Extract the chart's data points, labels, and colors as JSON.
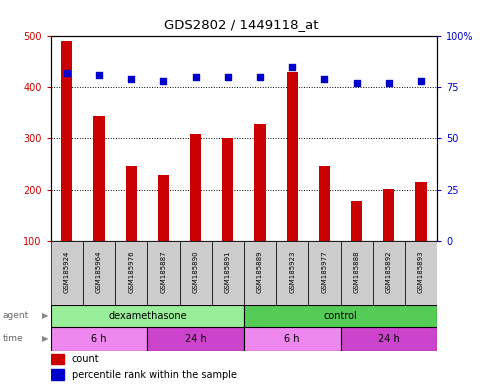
{
  "title": "GDS2802 / 1449118_at",
  "samples": [
    "GSM185924",
    "GSM185964",
    "GSM185976",
    "GSM185887",
    "GSM185890",
    "GSM185891",
    "GSM185889",
    "GSM185923",
    "GSM185977",
    "GSM185888",
    "GSM185892",
    "GSM185893"
  ],
  "counts": [
    490,
    343,
    246,
    228,
    308,
    300,
    328,
    430,
    246,
    178,
    201,
    215
  ],
  "percentile_ranks": [
    82,
    81,
    79,
    78,
    80,
    80,
    80,
    85,
    79,
    77,
    77,
    78
  ],
  "bar_color": "#cc0000",
  "dot_color": "#0000cc",
  "ylim_left": [
    100,
    500
  ],
  "ylim_right": [
    0,
    100
  ],
  "yticks_left": [
    100,
    200,
    300,
    400,
    500
  ],
  "yticks_right": [
    0,
    25,
    50,
    75,
    100
  ],
  "yticklabels_right": [
    "0",
    "25",
    "50",
    "75",
    "100%"
  ],
  "agent_groups": [
    {
      "label": "dexamethasone",
      "start": 0,
      "end": 6,
      "color": "#99ee99"
    },
    {
      "label": "control",
      "start": 6,
      "end": 12,
      "color": "#55cc55"
    }
  ],
  "time_groups": [
    {
      "label": "6 h",
      "start": 0,
      "end": 3,
      "color": "#ee88ee"
    },
    {
      "label": "24 h",
      "start": 3,
      "end": 6,
      "color": "#cc44cc"
    },
    {
      "label": "6 h",
      "start": 6,
      "end": 9,
      "color": "#ee88ee"
    },
    {
      "label": "24 h",
      "start": 9,
      "end": 12,
      "color": "#cc44cc"
    }
  ],
  "legend_count_color": "#cc0000",
  "legend_dot_color": "#0000cc",
  "background_color": "#ffffff",
  "plot_bg_color": "#ffffff",
  "grid_color": "#000000",
  "grid_linestyle": "dotted"
}
